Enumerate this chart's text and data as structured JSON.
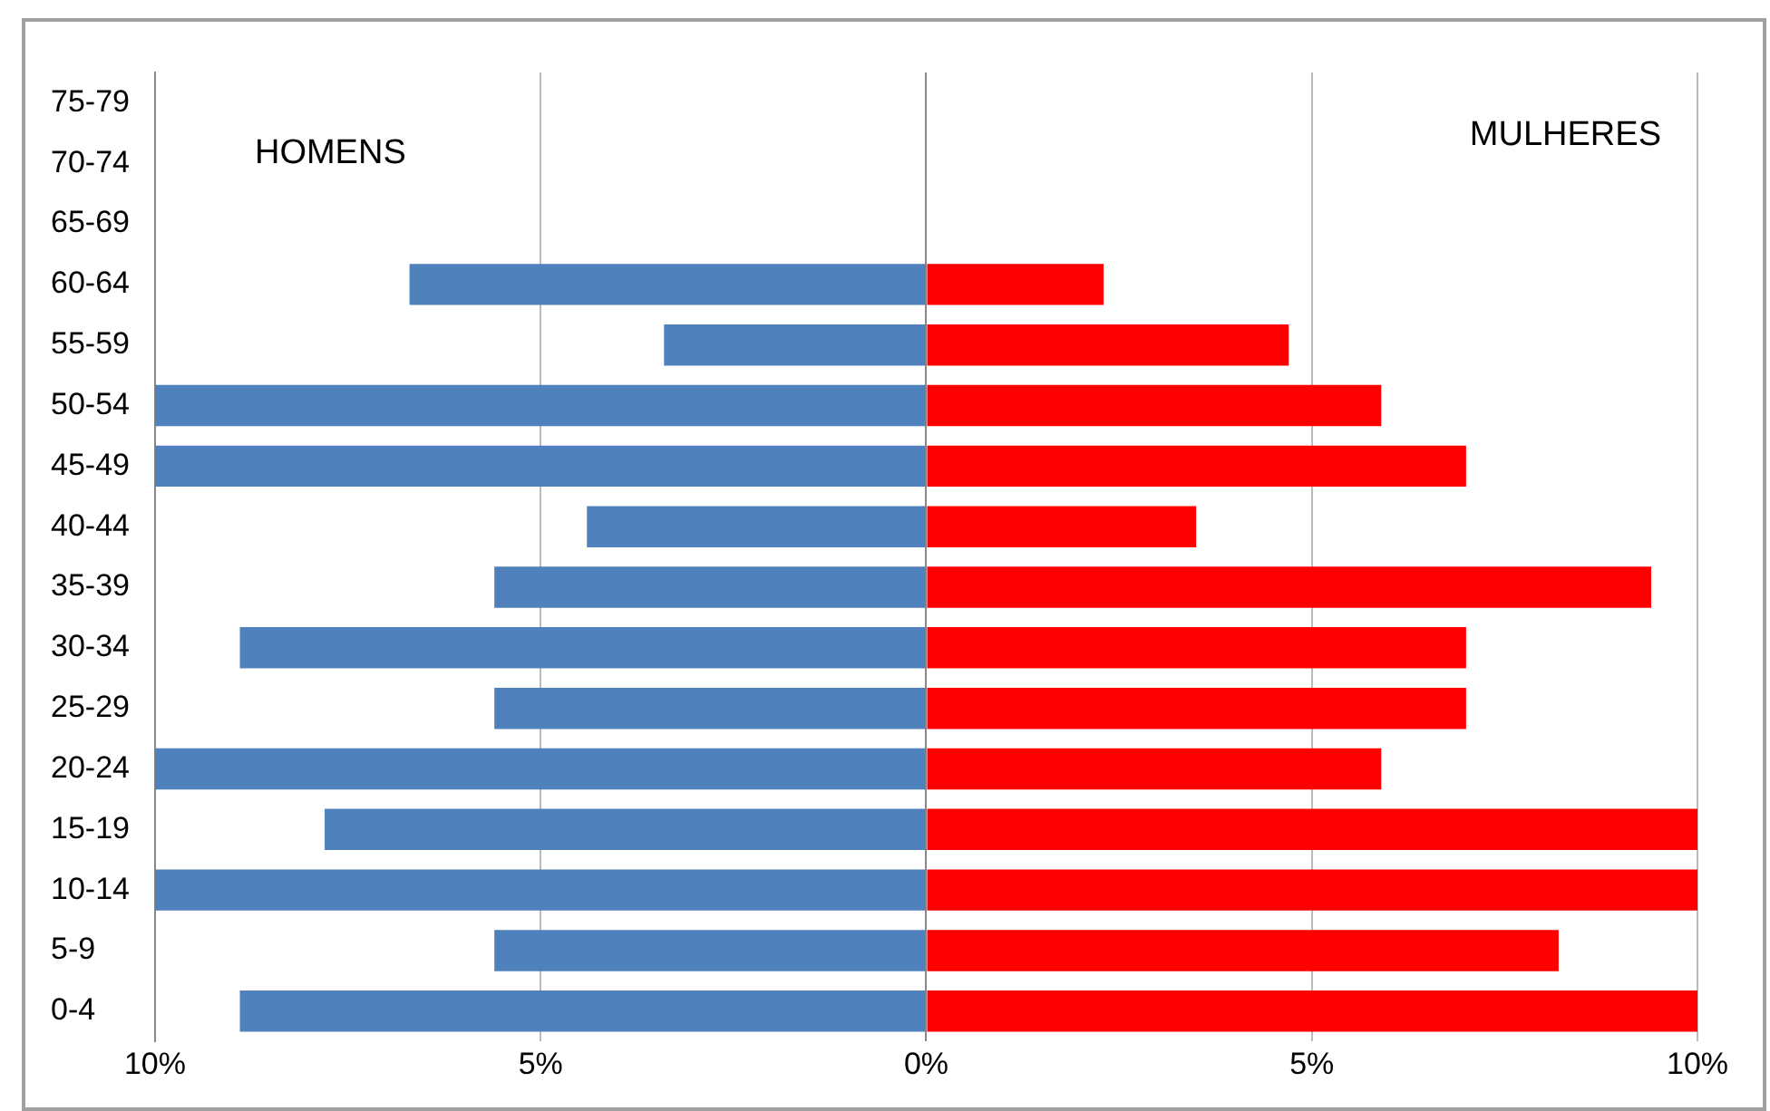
{
  "chart_data": {
    "type": "bar",
    "orientation": "horizontal",
    "stacked": true,
    "categories": [
      "75-79",
      "70-74",
      "65-69",
      "60-64",
      "55-59",
      "50-54",
      "45-49",
      "40-44",
      "35-39",
      "30-34",
      "25-29",
      "20-24",
      "15-19",
      "10-14",
      "5-9",
      "0-4"
    ],
    "series": [
      {
        "color": "#4f81bd",
        "values": [
          null,
          null,
          null,
          -6.7,
          -3.4,
          -10,
          -10,
          -4.4,
          -5.6,
          -8.9,
          -5.6,
          -10,
          -7.8,
          -10,
          -5.6,
          -8.9
        ]
      },
      {
        "color": "#ff0000",
        "values": [
          null,
          null,
          null,
          2.3,
          4.7,
          5.9,
          7.0,
          3.5,
          9.4,
          7.0,
          7.0,
          5.9,
          10,
          10,
          8.2,
          10
        ]
      }
    ],
    "xlim": [
      -10,
      10
    ],
    "xticks": [
      {
        "value": -10,
        "label": "10%"
      },
      {
        "value": -5,
        "label": "5%"
      },
      {
        "value": 0,
        "label": "0%"
      },
      {
        "value": 5,
        "label": "5%"
      },
      {
        "value": 10,
        "label": "10%"
      }
    ],
    "grid": "x",
    "legend": false,
    "annotations": [
      "HOMENS",
      "MULHERES"
    ]
  }
}
